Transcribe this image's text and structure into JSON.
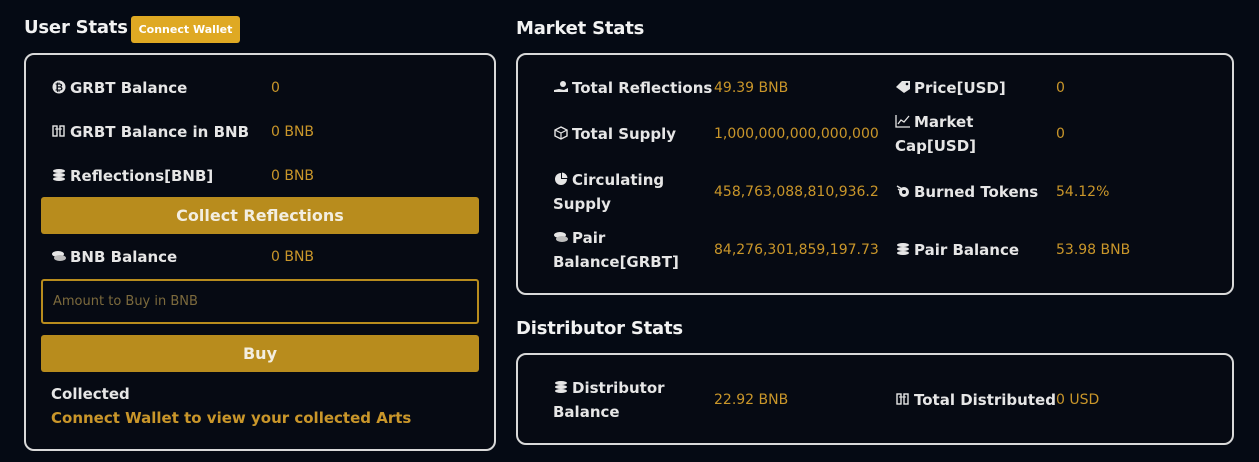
{
  "user_stats": {
    "heading": "User Stats",
    "connect_wallet_label": "Connect Wallet",
    "rows": [
      {
        "label": "GRBT Balance",
        "value": "0",
        "icon": "bitcoin-icon"
      },
      {
        "label": "GRBT Balance in BNB",
        "value": "0 BNB",
        "icon": "exchange-icon"
      },
      {
        "label": "Reflections[BNB]",
        "value": "0 BNB",
        "icon": "coins-icon"
      }
    ],
    "collect_button_label": "Collect Reflections",
    "bnb_balance": {
      "label": "BNB Balance",
      "value": "0 BNB",
      "icon": "coin-stack-icon"
    },
    "amount_placeholder": "Amount to Buy in BNB",
    "buy_button_label": "Buy",
    "collected_title": "Collected",
    "collected_link": "Connect Wallet to view your collected Arts"
  },
  "market_stats": {
    "heading": "Market Stats",
    "left_rows": [
      {
        "label": "Total Reflections",
        "value": "49.39 BNB",
        "icon": "hand-coins-icon"
      },
      {
        "label": "Total Supply",
        "value": "1,000,000,000,000,000",
        "icon": "supply-icon"
      },
      {
        "label_line1": "Circulating",
        "label_line2": "Supply",
        "value": "458,763,088,810,936.2",
        "icon": "pie-chart-icon"
      },
      {
        "label_line1": "Pair",
        "label_line2": "Balance[GRBT]",
        "value": "84,276,301,859,197.73",
        "icon": "coin-stack-icon"
      }
    ],
    "right_rows": [
      {
        "label": "Price[USD]",
        "value": "0",
        "icon": "tag-icon"
      },
      {
        "label_line1": "Market",
        "label_line2": "Cap[USD]",
        "value": "0",
        "icon": "line-chart-icon"
      },
      {
        "label": "Burned Tokens",
        "value": "54.12%",
        "icon": "fire-icon"
      },
      {
        "label": "Pair Balance",
        "value": "53.98 BNB",
        "icon": "coins-icon"
      }
    ]
  },
  "distributor_stats": {
    "heading": "Distributor Stats",
    "balance": {
      "label_line1": "Distributor",
      "label_line2": "Balance",
      "value": "22.92 BNB",
      "icon": "coins-icon"
    },
    "total": {
      "label": "Total Distributed",
      "value": "0 USD",
      "icon": "exchange-icon"
    }
  },
  "colors": {
    "accent": "#dfa923",
    "button": "#b88c1d",
    "value": "#c9962a",
    "background": "#050a14"
  }
}
